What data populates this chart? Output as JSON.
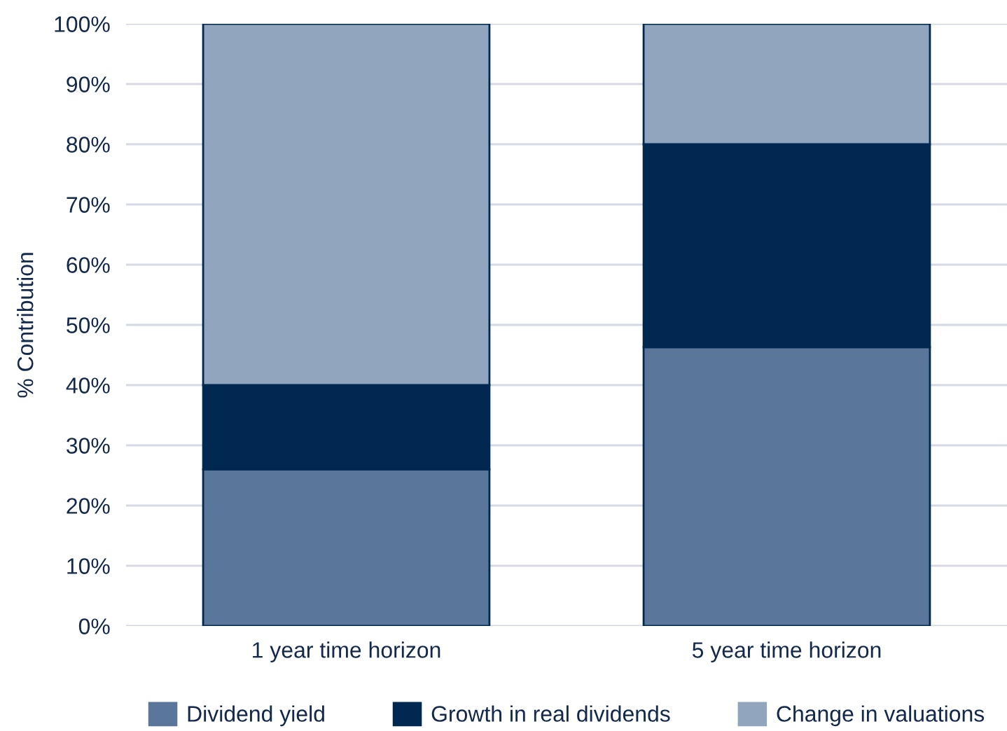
{
  "chart_data": {
    "type": "bar",
    "stacked": true,
    "ylabel": "% Contribution",
    "categories": [
      "1 year time horizon",
      "5 year time horizon"
    ],
    "series": [
      {
        "name": "Dividend yield",
        "color": "#5a769b",
        "values": [
          26,
          46.3
        ]
      },
      {
        "name": "Growth in real dividends",
        "color": "#002850",
        "values": [
          14,
          33.7
        ]
      },
      {
        "name": "Change in valuations",
        "color": "#91a5bf",
        "values": [
          60,
          20
        ]
      }
    ],
    "ylim": [
      0,
      100
    ],
    "yticks": [
      {
        "value": 0,
        "label": "0%"
      },
      {
        "value": 10,
        "label": "10%"
      },
      {
        "value": 20,
        "label": "20%"
      },
      {
        "value": 30,
        "label": "30%"
      },
      {
        "value": 40,
        "label": "40%"
      },
      {
        "value": 50,
        "label": "50%"
      },
      {
        "value": 60,
        "label": "60%"
      },
      {
        "value": 70,
        "label": "70%"
      },
      {
        "value": 80,
        "label": "80%"
      },
      {
        "value": 90,
        "label": "90%"
      },
      {
        "value": 100,
        "label": "100%"
      }
    ],
    "grid": "y",
    "legend": "bottom"
  }
}
